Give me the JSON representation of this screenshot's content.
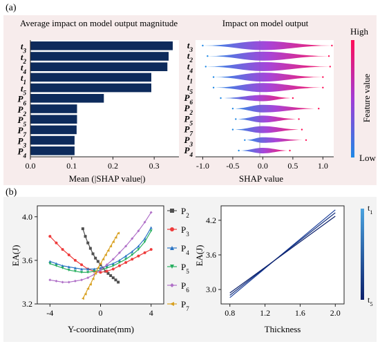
{
  "panel_labels": {
    "a": "(a)",
    "b": "(b)"
  },
  "colors": {
    "bar": "#0d2b5c",
    "shap_high": "#ff0d57",
    "shap_mid": "#a23bd6",
    "shap_low": "#1e88e5",
    "panel_bg_top": "#f7ecec",
    "panel_bg_bottom": "#f3f3f3",
    "thick_light": "#4aa3df",
    "thick_dark": "#0a1f6b"
  },
  "chart_data": [
    {
      "type": "bar",
      "orientation": "horizontal",
      "title": "Average impact on model output magnitude",
      "xlabel": "Mean (|SHAP value|)",
      "categories": [
        "t3",
        "t2",
        "t4",
        "t1",
        "t5",
        "P6",
        "P2",
        "P5",
        "P7",
        "P3",
        "P4"
      ],
      "category_labels": [
        [
          "t",
          "3"
        ],
        [
          "t",
          "2"
        ],
        [
          "t",
          "4"
        ],
        [
          "t",
          "1"
        ],
        [
          "t",
          "5"
        ],
        [
          "P",
          "6"
        ],
        [
          "P",
          "2"
        ],
        [
          "P",
          "5"
        ],
        [
          "P",
          "7"
        ],
        [
          "P",
          "3"
        ],
        [
          "P",
          "4"
        ]
      ],
      "values": [
        0.345,
        0.335,
        0.332,
        0.293,
        0.293,
        0.178,
        0.113,
        0.113,
        0.112,
        0.107,
        0.107
      ],
      "xlim": [
        0,
        0.36
      ],
      "xticks": [
        "0.0",
        "0.1",
        "0.2",
        "0.3"
      ]
    },
    {
      "type": "scatter",
      "subtype": "beeswarm",
      "title": "Impact on model output",
      "xlabel": "SHAP value",
      "categories": [
        "t3",
        "t2",
        "t4",
        "t1",
        "t5",
        "P6",
        "P2",
        "P5",
        "P7",
        "P3",
        "P4"
      ],
      "category_labels": [
        [
          "t",
          "3"
        ],
        [
          "t",
          "2"
        ],
        [
          "t",
          "4"
        ],
        [
          "t",
          "1"
        ],
        [
          "t",
          "5"
        ],
        [
          "P",
          "6"
        ],
        [
          "P",
          "2"
        ],
        [
          "P",
          "5"
        ],
        [
          "P",
          "7"
        ],
        [
          "P",
          "3"
        ],
        [
          "P",
          "4"
        ]
      ],
      "ranges": [
        [
          -1.0,
          1.15
        ],
        [
          -0.92,
          1.1
        ],
        [
          -0.95,
          1.12
        ],
        [
          -0.82,
          1.0
        ],
        [
          -0.82,
          1.0
        ],
        [
          -0.7,
          0.5
        ],
        [
          -0.5,
          0.93
        ],
        [
          -0.45,
          0.6
        ],
        [
          -0.5,
          0.65
        ],
        [
          -0.3,
          0.72
        ],
        [
          -0.4,
          0.45
        ]
      ],
      "xlim": [
        -1.12,
        1.18
      ],
      "xticks": [
        "-1.0",
        "-0.5",
        "0.0",
        "0.5",
        "1.0"
      ],
      "colorbar": {
        "label": "Feature value",
        "high": "High",
        "low": "Low"
      }
    },
    {
      "type": "line",
      "xlabel": "Y-coordinate(mm)",
      "ylabel": "EA(J)",
      "xlim": [
        -5,
        5
      ],
      "ylim": [
        3.2,
        4.1
      ],
      "xticks": [
        "-4",
        "0",
        "4"
      ],
      "yticks": [
        "3.2",
        "3.6",
        "4.0"
      ],
      "series": [
        {
          "name": [
            "P",
            "2"
          ],
          "color": "#505050",
          "marker": "square",
          "x": [
            -1.4,
            -1.2,
            -1.0,
            -0.8,
            -0.6,
            -0.4,
            -0.2,
            0.0,
            0.2,
            0.4,
            0.6,
            0.8,
            1.0,
            1.2,
            1.4
          ],
          "y": [
            3.89,
            3.82,
            3.76,
            3.71,
            3.66,
            3.62,
            3.59,
            3.56,
            3.53,
            3.5,
            3.48,
            3.46,
            3.44,
            3.42,
            3.4
          ]
        },
        {
          "name": [
            "P",
            "3"
          ],
          "color": "#ee3b3b",
          "marker": "circle",
          "x": [
            -4,
            -3.5,
            -3,
            -2.5,
            -2,
            -1.5,
            -1,
            -0.5,
            0,
            0.5,
            1,
            1.5,
            2,
            2.5,
            3,
            3.5,
            4
          ],
          "y": [
            3.82,
            3.76,
            3.7,
            3.65,
            3.6,
            3.56,
            3.52,
            3.5,
            3.49,
            3.5,
            3.52,
            3.55,
            3.58,
            3.61,
            3.64,
            3.67,
            3.7
          ]
        },
        {
          "name": [
            "P",
            "4"
          ],
          "color": "#2a74c4",
          "marker": "triangle-up",
          "x": [
            -4,
            -3.5,
            -3,
            -2.5,
            -2,
            -1.5,
            -1,
            -0.5,
            0,
            0.5,
            1,
            1.5,
            2,
            2.5,
            3,
            3.5,
            4
          ],
          "y": [
            3.59,
            3.57,
            3.55,
            3.54,
            3.53,
            3.52,
            3.52,
            3.52,
            3.53,
            3.55,
            3.57,
            3.6,
            3.64,
            3.68,
            3.73,
            3.8,
            3.9
          ]
        },
        {
          "name": [
            "P",
            "5"
          ],
          "color": "#27ae60",
          "marker": "triangle-down",
          "x": [
            -4,
            -3.5,
            -3,
            -2.5,
            -2,
            -1.5,
            -1,
            -0.5,
            0,
            0.5,
            1,
            1.5,
            2,
            2.5,
            3,
            3.5,
            4
          ],
          "y": [
            3.57,
            3.55,
            3.53,
            3.51,
            3.5,
            3.49,
            3.49,
            3.5,
            3.51,
            3.53,
            3.55,
            3.58,
            3.61,
            3.65,
            3.7,
            3.77,
            3.87
          ]
        },
        {
          "name": [
            "P",
            "6"
          ],
          "color": "#b070c8",
          "marker": "diamond",
          "x": [
            -4,
            -3.5,
            -3,
            -2.5,
            -2,
            -1.5,
            -1,
            -0.5,
            0,
            0.5,
            1,
            1.5,
            2,
            2.5,
            3,
            3.5,
            4
          ],
          "y": [
            3.42,
            3.41,
            3.4,
            3.4,
            3.41,
            3.42,
            3.44,
            3.47,
            3.51,
            3.56,
            3.61,
            3.67,
            3.73,
            3.8,
            3.87,
            3.95,
            4.04
          ]
        },
        {
          "name": [
            "P",
            "7"
          ],
          "color": "#d8a020",
          "marker": "triangle-left",
          "x": [
            -1.4,
            -1.2,
            -1.0,
            -0.8,
            -0.6,
            -0.4,
            -0.2,
            0.0,
            0.2,
            0.4,
            0.6,
            0.8,
            1.0,
            1.2,
            1.4
          ],
          "y": [
            3.25,
            3.29,
            3.34,
            3.38,
            3.43,
            3.48,
            3.53,
            3.57,
            3.61,
            3.65,
            3.69,
            3.73,
            3.77,
            3.81,
            3.85
          ]
        }
      ]
    },
    {
      "type": "line",
      "xlabel": "Thickness",
      "ylabel": "EA(J)",
      "xlim": [
        0.7,
        2.1
      ],
      "ylim": [
        2.75,
        4.45
      ],
      "xticks": [
        "0.8",
        "1.2",
        "1.6",
        "2.0"
      ],
      "yticks": [
        "3.0",
        "3.6",
        "4.2"
      ],
      "series": [
        {
          "x": [
            0.8,
            2.0
          ],
          "y": [
            2.86,
            4.38
          ]
        },
        {
          "x": [
            0.8,
            2.0
          ],
          "y": [
            2.9,
            4.33
          ]
        },
        {
          "x": [
            0.8,
            2.0
          ],
          "y": [
            2.94,
            4.27
          ]
        }
      ],
      "colorbar": {
        "top": [
          "t",
          "1"
        ],
        "bottom": [
          "t",
          "5"
        ]
      }
    }
  ]
}
